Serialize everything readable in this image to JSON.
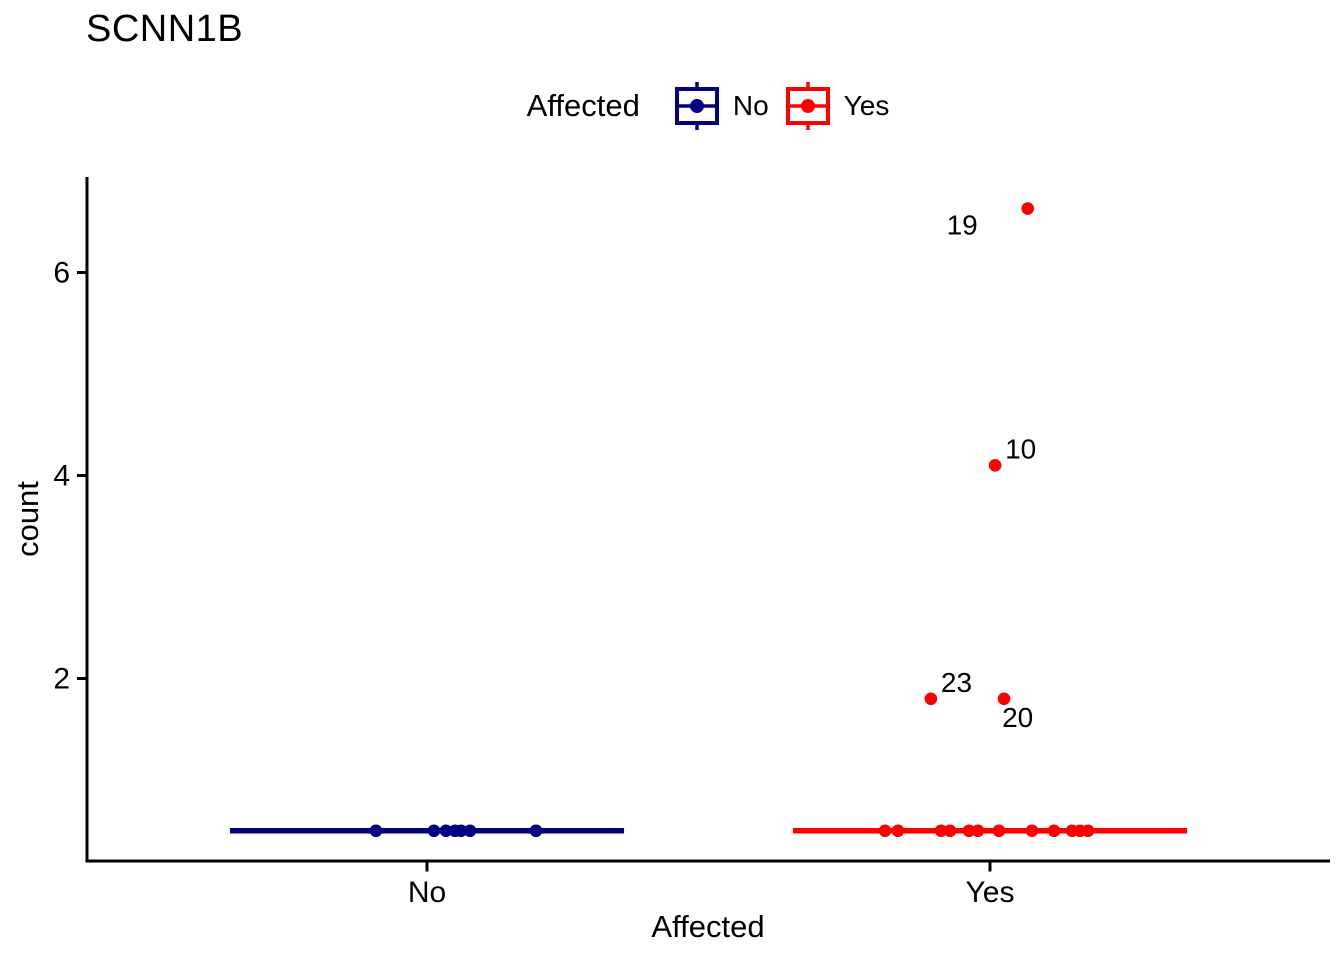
{
  "title": "SCNN1B",
  "legend": {
    "title": "Affected",
    "items": [
      {
        "label": "No",
        "color": "#000080"
      },
      {
        "label": "Yes",
        "color": "#FF0000"
      }
    ]
  },
  "chart_data": {
    "type": "boxplot-jitter",
    "title": "SCNN1B",
    "xlabel": "Affected",
    "ylabel": "count",
    "x_categories": [
      "No",
      "Yes"
    ],
    "y_ticks": [
      2,
      4,
      6
    ],
    "ylim": [
      0.2,
      6.94
    ],
    "grid": false,
    "legend_position": "top",
    "series": [
      {
        "name": "No",
        "color": "#000080",
        "median_line_y": 0.5,
        "box_half_width": 0.35,
        "points": [
          {
            "y": 0.5,
            "jitter": -0.0906
          },
          {
            "y": 0.5,
            "jitter": 0.0124
          },
          {
            "y": 0.5,
            "jitter": 0.0337
          },
          {
            "y": 0.5,
            "jitter": 0.0497
          },
          {
            "y": 0.5,
            "jitter": 0.0604
          },
          {
            "y": 0.5,
            "jitter": 0.0764
          },
          {
            "y": 0.5,
            "jitter": 0.1936
          }
        ]
      },
      {
        "name": "Yes",
        "color": "#FF0000",
        "median_line_y": 0.5,
        "box_half_width": 0.35,
        "points": [
          {
            "y": 0.5,
            "jitter": -0.1865
          },
          {
            "y": 0.5,
            "jitter": -0.1634
          },
          {
            "y": 0.5,
            "jitter": -0.087
          },
          {
            "y": 0.5,
            "jitter": -0.071
          },
          {
            "y": 0.5,
            "jitter": -0.0373
          },
          {
            "y": 0.5,
            "jitter": -0.0213
          },
          {
            "y": 0.5,
            "jitter": 0.016
          },
          {
            "y": 0.5,
            "jitter": 0.0746
          },
          {
            "y": 0.5,
            "jitter": 0.1137
          },
          {
            "y": 0.5,
            "jitter": 0.1457
          },
          {
            "y": 0.5,
            "jitter": 0.1599
          },
          {
            "y": 0.5,
            "jitter": 0.1741
          },
          {
            "y": 1.8,
            "jitter": -0.105,
            "label": "23",
            "label_pos": "top-right"
          },
          {
            "y": 1.8,
            "jitter": 0.025,
            "label": "20",
            "label_pos": "bottom-right"
          },
          {
            "y": 4.1,
            "jitter": 0.009,
            "label": "10",
            "label_pos": "top-right"
          },
          {
            "y": 6.63,
            "jitter": 0.067,
            "label": "19",
            "label_pos": "left"
          }
        ]
      }
    ]
  }
}
